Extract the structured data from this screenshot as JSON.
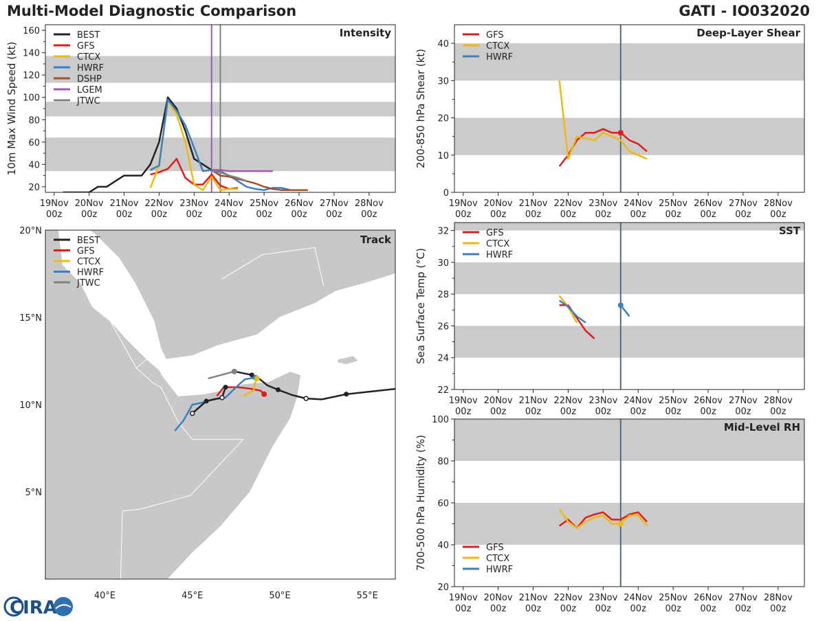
{
  "header": {
    "title": "Multi-Model Diagnostic Comparison",
    "storm": "GATI - IO032020"
  },
  "logo": {
    "text": "CIRA"
  },
  "colors": {
    "BEST": "#222222",
    "GFS": "#e31a1c",
    "CTCX": "#f0b90b",
    "HWRF": "#3a7fc1",
    "DSHP": "#a0522d",
    "LGEM": "#a05ab0",
    "JTWC": "#808080",
    "band": "#cbcbcb",
    "land": "#c8c8c8",
    "water": "#ffffff",
    "vline": "#52677a"
  },
  "time_axis": {
    "ticks": [
      0,
      1,
      2,
      3,
      4,
      5,
      6,
      7,
      8,
      9
    ],
    "labels": [
      "19Nov\n00z",
      "20Nov\n00z",
      "21Nov\n00z",
      "22Nov\n00z",
      "23Nov\n00z",
      "24Nov\n00z",
      "25Nov\n00z",
      "26Nov\n00z",
      "27Nov\n00z",
      "28Nov\n00z"
    ],
    "xlim": [
      -0.25,
      9.75
    ],
    "current_time": 4.5
  },
  "chart_data": [
    {
      "id": "intensity",
      "type": "line",
      "title": "Intensity",
      "ylabel": "10m Max Wind Speed (kt)",
      "ylim": [
        15,
        165
      ],
      "yticks": [
        20,
        40,
        60,
        80,
        100,
        120,
        140,
        160
      ],
      "bands": [
        [
          34,
          64
        ],
        [
          83,
          96
        ],
        [
          113,
          137
        ]
      ],
      "vlines": [
        {
          "x": 4.5,
          "color": "LGEM"
        },
        {
          "x": 4.75,
          "color": "JTWC"
        }
      ],
      "legend": [
        "BEST",
        "GFS",
        "CTCX",
        "HWRF",
        "DSHP",
        "LGEM",
        "JTWC"
      ],
      "series": [
        {
          "name": "BEST",
          "x": [
            0.25,
            0.5,
            0.75,
            1.0,
            1.25,
            1.5,
            1.75,
            2.0,
            2.25,
            2.5,
            2.75,
            3.0,
            3.25,
            3.5,
            3.75,
            4.0,
            4.25,
            4.5,
            4.75
          ],
          "y": [
            15,
            15,
            15,
            15,
            20,
            20,
            25,
            30,
            30,
            30,
            40,
            60,
            100,
            90,
            70,
            45,
            40,
            35,
            30
          ]
        },
        {
          "name": "GFS",
          "x": [
            2.75,
            3.0,
            3.25,
            3.5,
            3.75,
            4.0,
            4.25,
            4.5,
            4.75,
            5.0,
            5.25
          ],
          "y": [
            31,
            33,
            36,
            45,
            28,
            22,
            22,
            31,
            21,
            18,
            19
          ]
        },
        {
          "name": "CTCX",
          "x": [
            2.75,
            3.0,
            3.25,
            3.5,
            3.75,
            4.0,
            4.25,
            4.5,
            4.75,
            5.0,
            5.25
          ],
          "y": [
            19,
            39,
            97,
            85,
            60,
            22,
            17,
            29,
            17,
            18,
            18
          ]
        },
        {
          "name": "HWRF",
          "x": [
            2.75,
            3.0,
            3.25,
            3.5,
            3.75,
            4.0,
            4.25,
            4.5,
            4.75,
            5.0,
            5.25,
            5.5,
            5.75,
            6.0,
            6.25,
            6.5,
            6.75
          ],
          "y": [
            35,
            39,
            98,
            88,
            75,
            55,
            34,
            35,
            34,
            30,
            25,
            20,
            18,
            17,
            19,
            19,
            17
          ]
        },
        {
          "name": "DSHP",
          "x": [
            4.5,
            4.75,
            5.0,
            5.25,
            5.5,
            5.75,
            6.0,
            6.25,
            6.5,
            6.75,
            7.0,
            7.25
          ],
          "y": [
            35,
            30,
            29,
            27,
            25,
            23,
            20,
            18,
            17,
            17,
            17,
            17
          ]
        },
        {
          "name": "LGEM",
          "x": [
            4.5,
            4.75,
            5.0,
            5.25,
            5.5,
            5.75,
            6.0,
            6.25
          ],
          "y": [
            35,
            35,
            34,
            34,
            34,
            34,
            34,
            34
          ]
        },
        {
          "name": "JTWC",
          "x": [
            4.5,
            4.75,
            5.0,
            5.25,
            5.5
          ],
          "y": [
            34,
            33,
            30,
            28,
            25
          ]
        }
      ]
    },
    {
      "id": "shear",
      "type": "line",
      "title": "Deep-Layer Shear",
      "ylabel": "200-850 hPa Shear (kt)",
      "ylim": [
        0,
        45
      ],
      "yticks": [
        0,
        10,
        20,
        30,
        40
      ],
      "bands": [
        [
          10,
          20
        ],
        [
          30,
          40
        ]
      ],
      "vlines": [
        {
          "x": 4.5,
          "color": "vline"
        }
      ],
      "legend": [
        "GFS",
        "CTCX",
        "HWRF"
      ],
      "series": [
        {
          "name": "GFS",
          "x": [
            2.75,
            3.0,
            3.25,
            3.5,
            3.75,
            4.0,
            4.25,
            4.5,
            4.75,
            5.0,
            5.25
          ],
          "y": [
            7,
            10,
            14,
            16,
            16,
            17,
            16,
            16,
            14,
            13,
            11
          ],
          "marker_at": 4.5
        },
        {
          "name": "CTCX",
          "x": [
            2.75,
            3.0,
            3.25,
            3.5,
            3.75,
            4.0,
            4.25,
            4.5,
            4.75,
            5.0,
            5.25
          ],
          "y": [
            30,
            9,
            15,
            14.5,
            14,
            16,
            15,
            14,
            11,
            10,
            9
          ]
        }
      ]
    },
    {
      "id": "sst",
      "type": "line",
      "title": "SST",
      "ylabel": "Sea Surface Temp (°C)",
      "ylim": [
        22,
        32.5
      ],
      "yticks": [
        22,
        24,
        26,
        28,
        30,
        32
      ],
      "bands": [
        [
          24,
          26
        ],
        [
          28,
          30
        ],
        [
          32,
          34
        ]
      ],
      "vlines": [
        {
          "x": 4.5,
          "color": "vline"
        }
      ],
      "legend": [
        "GFS",
        "CTCX",
        "HWRF"
      ],
      "series": [
        {
          "name": "GFS",
          "x": [
            2.75,
            3.0,
            3.25,
            3.5,
            3.75
          ],
          "y": [
            27.3,
            27.3,
            26.5,
            25.7,
            25.2
          ]
        },
        {
          "name": "CTCX",
          "x": [
            2.75,
            3.0,
            3.25
          ],
          "y": [
            27.9,
            27.2,
            26.2
          ]
        },
        {
          "name": "HWRF",
          "x": [
            2.75,
            3.0,
            3.25,
            3.5
          ],
          "y": [
            27.6,
            27.2,
            26.6,
            26.2
          ]
        },
        {
          "name": "HWRF",
          "x": [
            4.5,
            4.75
          ],
          "y": [
            27.3,
            26.6
          ],
          "marker_at": 4.5
        }
      ]
    },
    {
      "id": "rh",
      "type": "line",
      "title": "Mid-Level RH",
      "ylabel": "700-500 hPa Humidity (%)",
      "ylim": [
        20,
        100
      ],
      "yticks": [
        20,
        40,
        60,
        80,
        100
      ],
      "bands": [
        [
          40,
          60
        ],
        [
          80,
          100
        ]
      ],
      "vlines": [
        {
          "x": 4.5,
          "color": "vline"
        }
      ],
      "legend": [
        "GFS",
        "CTCX",
        "HWRF"
      ],
      "series": [
        {
          "name": "GFS",
          "x": [
            2.75,
            3.0,
            3.25,
            3.5,
            3.75,
            4.0,
            4.25,
            4.5,
            4.75,
            5.0,
            5.25
          ],
          "y": [
            49,
            52,
            48,
            53,
            54.5,
            55.5,
            52,
            52,
            54.5,
            55.5,
            51
          ]
        },
        {
          "name": "CTCX",
          "x": [
            2.75,
            3.0,
            3.25,
            3.5,
            3.75,
            4.0,
            4.25,
            4.5,
            4.75,
            5.0,
            5.25
          ],
          "y": [
            57,
            51,
            48,
            51,
            53,
            54,
            50,
            50,
            54,
            54,
            49
          ],
          "marker_at": 4.5
        }
      ]
    },
    {
      "id": "track",
      "type": "scatter",
      "title": "Track",
      "xlim": [
        36.6,
        56.6
      ],
      "ylim": [
        0,
        20
      ],
      "xticks": [
        40,
        45,
        50,
        55
      ],
      "xtick_labels": [
        "40°E",
        "45°E",
        "50°E",
        "55°E"
      ],
      "yticks": [
        5,
        10,
        15,
        20
      ],
      "ytick_labels": [
        "5°N",
        "10°N",
        "15°N",
        "20°N"
      ],
      "legend": [
        "BEST",
        "GFS",
        "CTCX",
        "HWRF",
        "JTWC"
      ],
      "series": [
        {
          "name": "BEST",
          "lon": [
            56.6,
            53.8,
            52.4,
            51.5,
            50.7,
            49.9,
            49.3,
            48.8,
            48.4,
            47.4
          ],
          "lat": [
            10.9,
            10.6,
            10.3,
            10.35,
            10.55,
            10.85,
            11.1,
            11.5,
            11.7,
            11.9
          ],
          "filled": [
            53.8,
            49.9,
            48.4,
            47.4
          ],
          "open": [
            51.5
          ]
        },
        {
          "name": "GFS",
          "lon": [
            46.4,
            46.8,
            47.6,
            48.4,
            48.9,
            49.1
          ],
          "lat": [
            10.5,
            11.0,
            11.0,
            10.9,
            10.8,
            10.6
          ]
        },
        {
          "name": "CTCX",
          "lon": [
            47.9,
            48.5,
            48.6,
            48.7
          ],
          "lat": [
            10.5,
            10.8,
            11.3,
            11.5
          ]
        },
        {
          "name": "HWRF",
          "lon": [
            44.0,
            44.5,
            45.0,
            45.5,
            46.2,
            46.9,
            47.5,
            48.0,
            48.6
          ],
          "lat": [
            8.5,
            9.1,
            10.0,
            10.1,
            10.3,
            10.4,
            11.0,
            11.45,
            11.55
          ]
        },
        {
          "name": "JTWC",
          "lon": [
            45.9,
            47.4
          ],
          "lat": [
            11.5,
            11.9
          ]
        },
        {
          "name": "BEST-early",
          "lon": [
            46.9,
            46.7,
            45.8,
            45.0
          ],
          "lat": [
            11.0,
            10.4,
            10.2,
            9.5
          ],
          "filled": [
            46.9,
            45.8
          ],
          "open": [
            46.7,
            45.0
          ]
        }
      ]
    }
  ]
}
